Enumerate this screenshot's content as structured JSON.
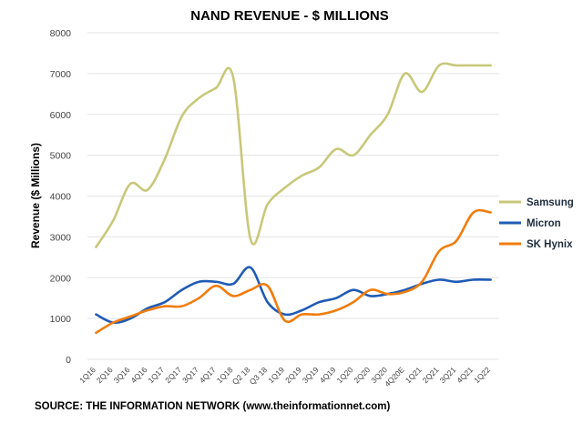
{
  "chart_data": {
    "type": "line",
    "title": "NAND REVENUE - $ MILLIONS",
    "ylabel": "Revenue ($ Millions)",
    "xlabel": "",
    "ylim": [
      0,
      8000
    ],
    "yticks": [
      0,
      1000,
      2000,
      3000,
      4000,
      5000,
      6000,
      7000,
      8000
    ],
    "grid": true,
    "legend_position": "right",
    "categories": [
      "1Q16",
      "2Q16",
      "3Q16",
      "4Q16",
      "1Q17",
      "2Q17",
      "3Q17",
      "4Q17",
      "1Q18",
      "Q2 18",
      "Q3 18",
      "1Q19",
      "2Q19",
      "3Q19",
      "4Q19",
      "1Q20",
      "2Q20",
      "3Q20",
      "4Q20E",
      "1Q21",
      "2Q21",
      "3Q21",
      "4Q21",
      "1Q22"
    ],
    "series": [
      {
        "name": "Samsung",
        "color": "#c8c87a",
        "values": [
          2750,
          3400,
          4300,
          4150,
          4900,
          5950,
          6400,
          6650,
          6900,
          2950,
          3800,
          4200,
          4500,
          4700,
          5150,
          5000,
          5500,
          6000,
          7000,
          6550,
          7200,
          7200,
          7200,
          7200
        ]
      },
      {
        "name": "Micron",
        "color": "#1f5bb5",
        "values": [
          1100,
          900,
          1000,
          1250,
          1400,
          1700,
          1900,
          1900,
          1850,
          2250,
          1400,
          1100,
          1200,
          1400,
          1500,
          1700,
          1550,
          1600,
          1700,
          1850,
          1950,
          1900,
          1950,
          1950
        ]
      },
      {
        "name": "SK Hynix",
        "color": "#f07d0e",
        "values": [
          650,
          900,
          1050,
          1200,
          1300,
          1300,
          1500,
          1800,
          1550,
          1700,
          1800,
          950,
          1100,
          1100,
          1200,
          1400,
          1700,
          1600,
          1650,
          1900,
          2650,
          2900,
          3600,
          3600
        ]
      }
    ]
  },
  "legend": {
    "samsung": "Samsung",
    "micron": "Micron",
    "skhynix": "SK Hynix"
  },
  "source": "SOURCE: THE INFORMATION NETWORK (www.theinformationnet.com)"
}
